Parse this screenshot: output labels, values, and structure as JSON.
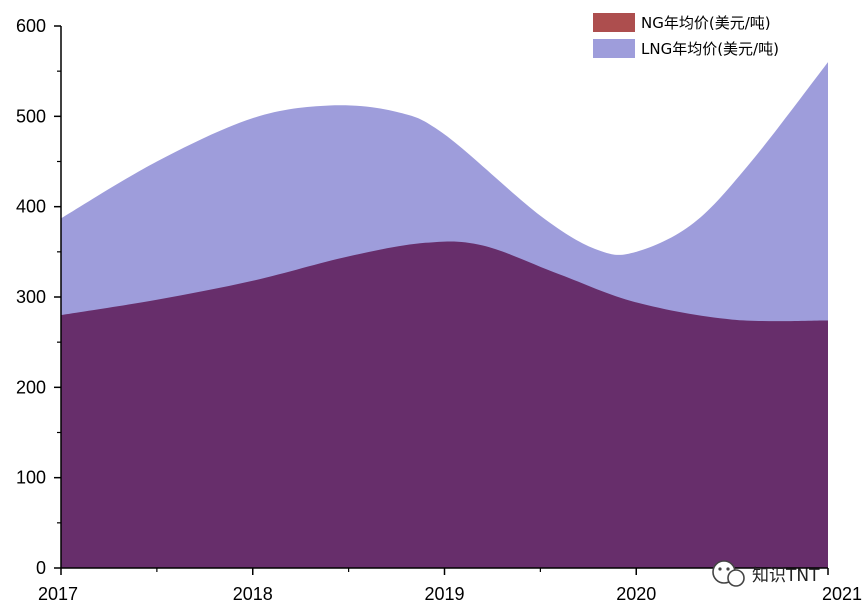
{
  "chart_data": {
    "type": "area",
    "x": [
      "2017",
      "2018",
      "2019",
      "2020",
      "2021"
    ],
    "series": [
      {
        "name": "LNG年均价(美元/吨)",
        "color": "#9e9ddb",
        "points": [
          [
            2017,
            387
          ],
          [
            2017.5,
            450
          ],
          [
            2018,
            498
          ],
          [
            2018.4,
            512
          ],
          [
            2018.75,
            505
          ],
          [
            2019,
            480
          ],
          [
            2019.5,
            390
          ],
          [
            2019.8,
            352
          ],
          [
            2020,
            350
          ],
          [
            2020.3,
            382
          ],
          [
            2020.6,
            450
          ],
          [
            2021,
            560
          ]
        ]
      },
      {
        "name": "NG年均价(美元/吨)",
        "color": "#672e6b",
        "legend_color": "#ad4e4e",
        "points": [
          [
            2017,
            280
          ],
          [
            2017.5,
            297
          ],
          [
            2018,
            318
          ],
          [
            2018.5,
            345
          ],
          [
            2018.9,
            360
          ],
          [
            2019.2,
            357
          ],
          [
            2019.6,
            325
          ],
          [
            2020,
            294
          ],
          [
            2020.5,
            275
          ],
          [
            2021,
            274
          ]
        ]
      }
    ],
    "ylim": [
      0,
      600
    ],
    "xlim": [
      2017,
      2021
    ],
    "yticks": [
      "0",
      "100",
      "200",
      "300",
      "400",
      "500",
      "600"
    ],
    "legend": {
      "placement": "top-right"
    }
  },
  "watermark": {
    "icon": "wechat-icon",
    "text": "知识TNT"
  }
}
